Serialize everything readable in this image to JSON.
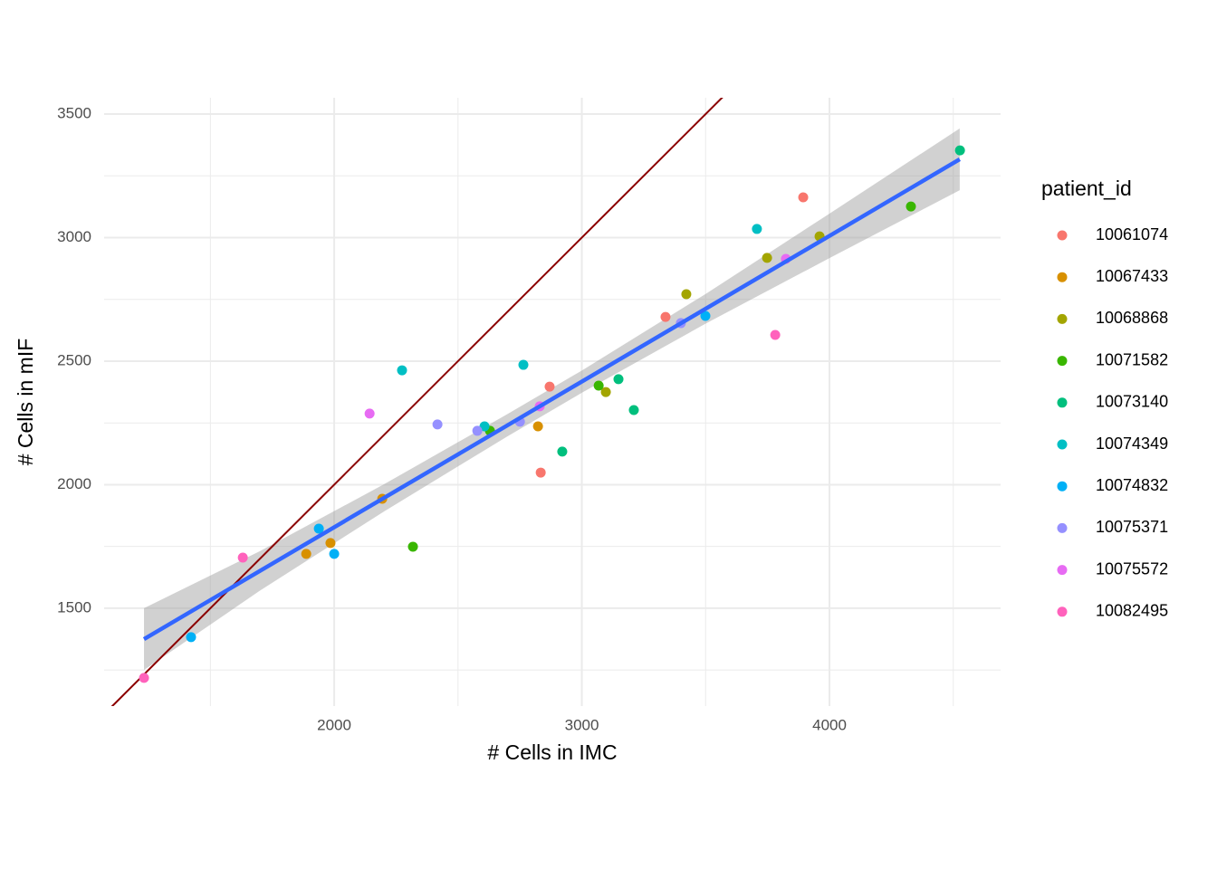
{
  "chart_data": {
    "type": "scatter",
    "x_label": "# Cells in IMC",
    "y_label": "# Cells in mIF",
    "xlim": [
      1071,
      4691
    ],
    "ylim": [
      1104,
      3566
    ],
    "xticks": [
      2000,
      3000,
      4000
    ],
    "yticks": [
      1500,
      2000,
      2500,
      3000,
      3500
    ],
    "x_minor_ticks": [
      1500,
      2500,
      3500,
      4500
    ],
    "y_minor_ticks": [
      1250,
      1750,
      2250,
      2750,
      3250
    ],
    "grid": true,
    "legend_title": "patient_id",
    "legend_position": "right",
    "reference_line": {
      "slope": 1,
      "intercept": 0,
      "color": "#8b0000"
    },
    "fit": {
      "color": "#3366ff",
      "x": [
        1232,
        4526
      ],
      "y": [
        1375,
        3317
      ]
    },
    "band": {
      "color": "#999999",
      "x": [
        1232,
        1700,
        2200,
        2700,
        3000,
        3500,
        4000,
        4526
      ],
      "lower": [
        1250,
        1571,
        1891,
        2196,
        2372,
        2652,
        2917,
        3192
      ],
      "upper": [
        1500,
        1731,
        2001,
        2286,
        2462,
        2772,
        3097,
        3442
      ]
    },
    "series": [
      {
        "name": "10061074",
        "color": "#F8766D",
        "x": [
          3894,
          2870,
          3338,
          2834
        ],
        "values": [
          3163,
          2397,
          2679,
          2049
        ]
      },
      {
        "name": "10067433",
        "color": "#D89000",
        "x": [
          2194,
          1887,
          1985,
          2823
        ],
        "values": [
          1943,
          1720,
          1764,
          2236
        ]
      },
      {
        "name": "10068868",
        "color": "#A3A500",
        "x": [
          3422,
          3097,
          3960,
          3748
        ],
        "values": [
          2771,
          2375,
          3005,
          2918
        ]
      },
      {
        "name": "10071582",
        "color": "#39B600",
        "x": [
          2318,
          3068,
          2629,
          4329
        ],
        "values": [
          1749,
          2401,
          2218,
          3126
        ]
      },
      {
        "name": "10073140",
        "color": "#00BF7D",
        "x": [
          2921,
          3148,
          3210,
          4527
        ],
        "values": [
          2134,
          2427,
          2302,
          3353
        ]
      },
      {
        "name": "10074349",
        "color": "#00BFC4",
        "x": [
          2274,
          2764,
          2607,
          3707
        ],
        "values": [
          2463,
          2485,
          2236,
          3035
        ]
      },
      {
        "name": "10074832",
        "color": "#00B0F6",
        "x": [
          1422,
          2000,
          1938,
          3499
        ],
        "values": [
          1383,
          1720,
          1822,
          2683
        ]
      },
      {
        "name": "10075371",
        "color": "#9590FF",
        "x": [
          2417,
          2578,
          2750,
          3400
        ],
        "values": [
          2244,
          2218,
          2255,
          2654
        ]
      },
      {
        "name": "10075572",
        "color": "#E76BF3",
        "x": [
          2143,
          2830,
          3824
        ],
        "values": [
          2288,
          2317,
          2914
        ]
      },
      {
        "name": "10082495",
        "color": "#FF62BC",
        "x": [
          1631,
          1232,
          3781
        ],
        "values": [
          1705,
          1218,
          2606
        ]
      }
    ]
  }
}
